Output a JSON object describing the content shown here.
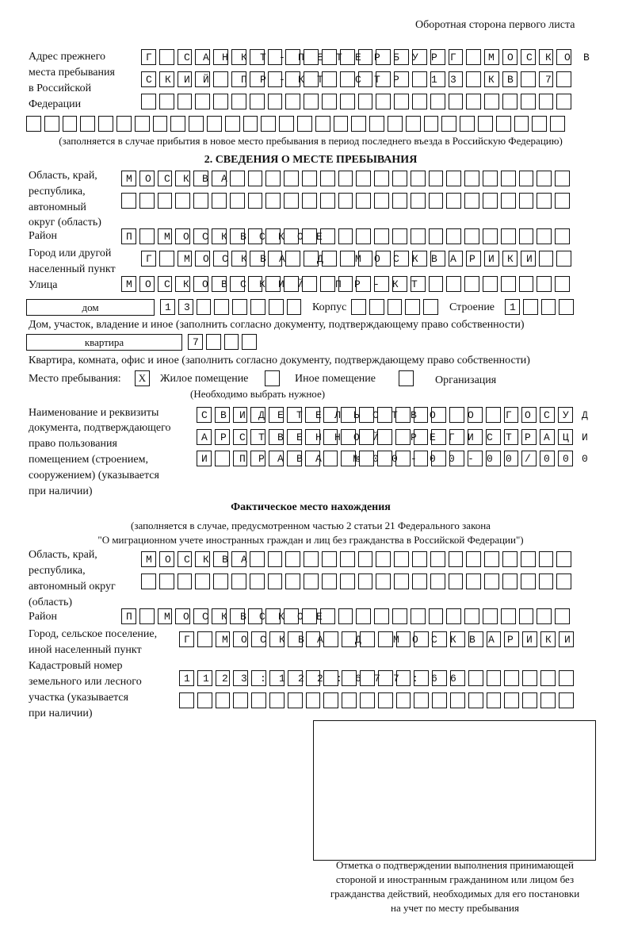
{
  "header": "Оборотная сторона первого листа",
  "prev_address": {
    "label": [
      "Адрес прежнего",
      "места пребывания",
      "в Российской",
      "Федерации"
    ],
    "rows": [
      "Г САНКТ-ПЕТЕРБУРГ МОСКОВ",
      "СКИЙ ПР-КТ СТР 13 КВ 7  ",
      "                        ",
      "                              "
    ],
    "note": "(заполняется в случае прибытия в новое место пребывания в период последнего въезда в Российскую Федерацию)"
  },
  "section2": {
    "title": "2. СВЕДЕНИЯ О МЕСТЕ ПРЕБЫВАНИЯ",
    "region_label": [
      "Область, край,",
      "республика,",
      "автономный",
      "округ (область)"
    ],
    "region_rows": [
      "МОСКВА                   ",
      "                         "
    ],
    "district_label": "Район",
    "district_row": "П МОСКВСКОЕ              ",
    "city_label": [
      "Город или другой",
      "населенный пункт"
    ],
    "city_row": "Г МОСКВА Д МОСКВАРИКИ   ",
    "street_label": "Улица",
    "street_row": "МОСКОВСКИЙ ПР-КТ         ",
    "house_type": "дом",
    "house_row": "13      ",
    "korpus_label": "Корпус",
    "korpus_row": "     ",
    "building_label": "Строение",
    "building_row": "1   ",
    "house_note": "Дом, участок, владение и иное (заполнить согласно документу, подтверждающему право собственности)",
    "flat_type": "квартира",
    "flat_row": "7   ",
    "flat_note": "Квартира, комната, офис и иное (заполнить согласно документу, подтверждающему право собственности)",
    "stay_label": "Место пребывания:",
    "stay_options": [
      {
        "label": "Жилое помещение",
        "mark": "Х"
      },
      {
        "label": "Иное помещение",
        "mark": ""
      },
      {
        "label": "Организация",
        "mark": ""
      }
    ],
    "stay_note": "(Необходимо выбрать нужное)",
    "doc_label": [
      "Наименование и реквизиты",
      "документа, подтверждающего",
      "право пользования",
      "помещением (строением,",
      "сооружением) (указывается",
      "при наличии)"
    ],
    "doc_rows": [
      "СВИДЕТЕЛЬСТВО О ГОСУД",
      "АРСТВЕННОЙ РЕГИСТРАЦИ",
      "И ПРАВА №00-00-00/000"
    ]
  },
  "actual": {
    "title": "Фактическое место нахождения",
    "subtitle": [
      "(заполняется в случае, предусмотренном частью 2 статьи 21 Федерального закона",
      "\"О миграционном учете иностранных граждан и лиц без гражданства в Российской Федерации\")"
    ],
    "region_label": [
      "Область, край,",
      "республика,",
      "автономный округ",
      "(область)"
    ],
    "region_rows": [
      "МОСКВА                  ",
      "                        "
    ],
    "district_label": "Район",
    "district_row": "П МОСКВСКОЕ              ",
    "city_label": [
      "Город, сельское поселение,",
      "иной населенный пункт"
    ],
    "city_row": "Г МОСКВА Д МОСКВАРИКИ ",
    "cadastre_label": [
      "Кадастровый номер",
      "земельного или лесного",
      "участка (указывается",
      "при наличии)"
    ],
    "cadastre_rows": [
      "1123:122:677:66       ",
      "                      "
    ]
  },
  "stamp_caption": [
    "Отметка о подтверждении выполнения принимающей",
    "стороной и иностранным гражданином или лицом без",
    "гражданства действий, необходимых для его постановки",
    "на учет по месту пребывания"
  ]
}
